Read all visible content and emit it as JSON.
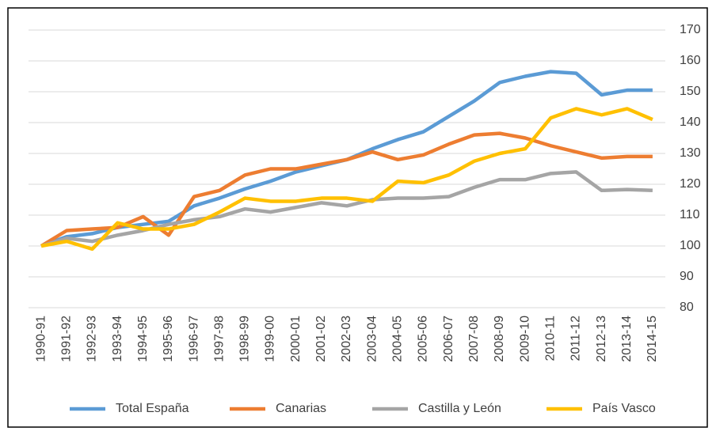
{
  "chart_data": {
    "type": "line",
    "categories": [
      "1990-91",
      "1991-92",
      "1992-93",
      "1993-94",
      "1994-95",
      "1995-96",
      "1996-97",
      "1997-98",
      "1998-99",
      "1999-00",
      "2000-01",
      "2001-02",
      "2002-03",
      "2003-04",
      "2004-05",
      "2005-06",
      "2006-07",
      "2007-08",
      "2008-09",
      "2009-10",
      "2010-11",
      "2011-12",
      "2012-13",
      "2013-14",
      "2014-15"
    ],
    "series": [
      {
        "name": "Total España",
        "color": "#5b9bd5",
        "values": [
          100,
          103,
          104,
          106,
          107,
          108,
          113,
          115.5,
          118.5,
          121,
          124,
          126,
          128,
          131.5,
          134.5,
          137,
          142,
          147,
          153,
          155,
          156.5,
          156,
          149,
          150.5,
          150.5
        ]
      },
      {
        "name": "Canarias",
        "color": "#ed7d31",
        "values": [
          100,
          105,
          105.5,
          106,
          109.5,
          103.5,
          116,
          118,
          123,
          125,
          125,
          126.5,
          128,
          130.5,
          128,
          129.5,
          133,
          136,
          136.5,
          135,
          132.5,
          130.5,
          128.5,
          129,
          129
        ]
      },
      {
        "name": "Castilla y León",
        "color": "#a5a5a5",
        "values": [
          100,
          102.5,
          101.5,
          103.5,
          105,
          107,
          108.5,
          109.5,
          112,
          111,
          112.5,
          114,
          113,
          115,
          115.5,
          115.5,
          116,
          119,
          121.5,
          121.5,
          123.5,
          124,
          118,
          118.3,
          118
        ]
      },
      {
        "name": "País Vasco",
        "color": "#ffc000",
        "values": [
          100,
          101.5,
          99,
          107.5,
          105.5,
          105.5,
          107,
          111,
          115.5,
          114.5,
          114.5,
          115.5,
          115.5,
          114.5,
          121,
          120.5,
          123,
          127.5,
          130,
          131.5,
          141.5,
          144.5,
          142.5,
          144.5,
          141
        ]
      }
    ],
    "ylim": [
      80,
      170
    ],
    "yticks": [
      80,
      90,
      100,
      110,
      120,
      130,
      140,
      150,
      160,
      170
    ],
    "grid": true,
    "legend": "bottom"
  }
}
